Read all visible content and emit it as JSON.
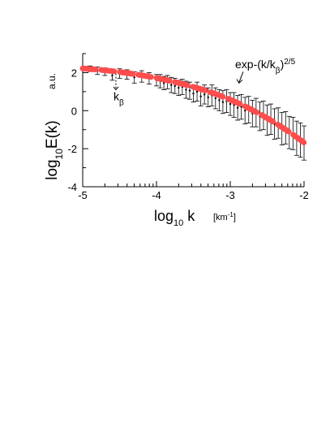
{
  "chart_data": {
    "type": "scatter",
    "xlabel": "log",
    "xlabel_sub": "10",
    "xlabel_var": " k",
    "xunit": "[km",
    "xunit_sup": "-1",
    "xunit_close": "]",
    "ylabel": "log",
    "ylabel_sub": "10",
    "ylabel_var": "E(k)",
    "yunit": "a.u.",
    "xlim": [
      -5,
      -2
    ],
    "ylim": [
      -4,
      3
    ],
    "x_ticks": [
      -5,
      -4,
      -3,
      -2
    ],
    "x_tick_labels": [
      "-5",
      "-4",
      "-3",
      "-2"
    ],
    "y_ticks": [
      -4,
      -2,
      0,
      2
    ],
    "y_tick_labels": [
      "-4",
      "-2",
      "0",
      "2"
    ],
    "grid": false,
    "annotations": {
      "k_beta": {
        "text": "k",
        "sub": "β",
        "x": -4.55
      },
      "fit_label": {
        "text": "exp-(k/k",
        "sub": "β",
        "close": ")",
        "sup": "2/5"
      }
    },
    "fit": {
      "name": "exp-(k/kβ)^(2/5)",
      "color": "#ff4d4d",
      "x": [
        -5.0,
        -4.8,
        -4.6,
        -4.4,
        -4.2,
        -4.0,
        -3.8,
        -3.6,
        -3.4,
        -3.2,
        -3.0,
        -2.8,
        -2.6,
        -2.4,
        -2.2,
        -2.0
      ],
      "y": [
        2.22,
        2.16,
        2.08,
        1.98,
        1.86,
        1.72,
        1.55,
        1.36,
        1.14,
        0.88,
        0.58,
        0.23,
        -0.17,
        -0.62,
        -1.12,
        -1.68
      ]
    },
    "series": [
      {
        "error_color": "#000000",
        "x": [
          -4.9,
          -4.8,
          -4.7,
          -4.6,
          -4.5,
          -4.4,
          -4.3,
          -4.2,
          -4.1,
          -4.0,
          -3.95,
          -3.9,
          -3.85,
          -3.8,
          -3.75,
          -3.7,
          -3.65,
          -3.6,
          -3.55,
          -3.5,
          -3.45,
          -3.4,
          -3.35,
          -3.3,
          -3.25,
          -3.2,
          -3.15,
          -3.1,
          -3.05,
          -3.0,
          -2.95,
          -2.9,
          -2.85,
          -2.8,
          -2.75,
          -2.7,
          -2.65,
          -2.6,
          -2.55,
          -2.5,
          -2.45,
          -2.4,
          -2.35,
          -2.3,
          -2.25,
          -2.2,
          -2.15,
          -2.1,
          -2.05,
          -2.0
        ],
        "y": [
          2.2,
          2.1,
          2.05,
          1.85,
          1.95,
          1.9,
          1.75,
          1.8,
          1.7,
          1.6,
          1.55,
          1.45,
          1.5,
          1.35,
          1.3,
          1.2,
          1.25,
          1.1,
          1.05,
          0.9,
          1.0,
          0.75,
          0.85,
          0.7,
          0.8,
          0.65,
          0.55,
          0.45,
          0.5,
          0.35,
          0.3,
          0.15,
          0.2,
          0.0,
          0.05,
          -0.15,
          -0.1,
          -0.3,
          -0.25,
          -0.5,
          -0.45,
          -0.7,
          -0.65,
          -0.95,
          -0.9,
          -1.15,
          -1.2,
          -1.45,
          -1.55,
          -1.7
        ],
        "err": [
          0.15,
          0.2,
          0.2,
          0.25,
          0.25,
          0.25,
          0.3,
          0.3,
          0.3,
          0.3,
          0.35,
          0.35,
          0.35,
          0.4,
          0.4,
          0.4,
          0.4,
          0.45,
          0.45,
          0.45,
          0.5,
          0.5,
          0.5,
          0.5,
          0.55,
          0.55,
          0.55,
          0.6,
          0.6,
          0.6,
          0.65,
          0.65,
          0.65,
          0.7,
          0.7,
          0.7,
          0.75,
          0.75,
          0.75,
          0.8,
          0.8,
          0.8,
          0.8,
          0.85,
          0.85,
          0.85,
          0.85,
          0.9,
          0.9,
          0.9
        ]
      }
    ]
  }
}
